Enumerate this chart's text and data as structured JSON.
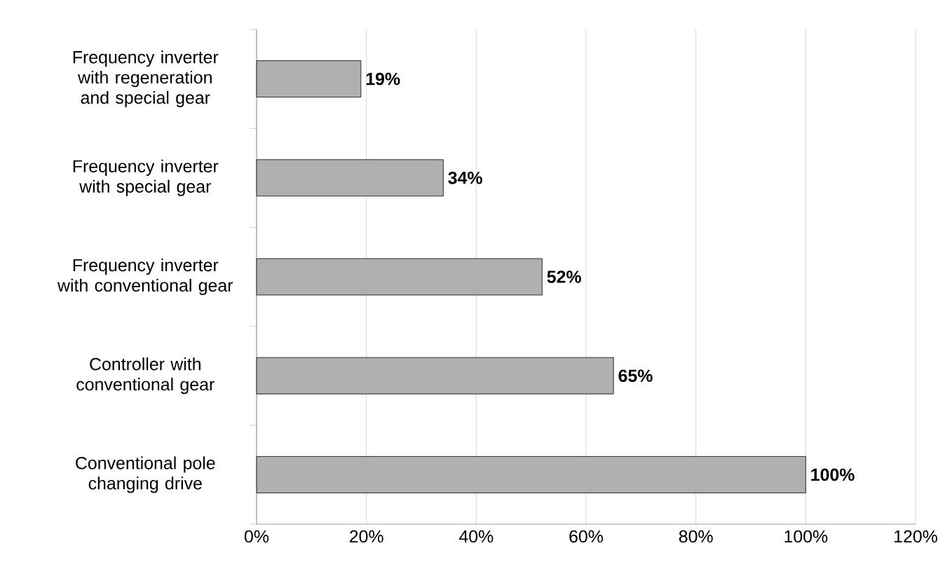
{
  "chart_data": {
    "type": "bar",
    "orientation": "horizontal",
    "categories": [
      "Frequency inverter with regeneration and special gear",
      "Frequency inverter with special gear",
      "Frequency inverter with conventional gear",
      "Controller with conventional gear",
      "Conventional pole changing drive"
    ],
    "values": [
      19,
      34,
      52,
      65,
      100
    ],
    "value_labels": [
      "19%",
      "34%",
      "52%",
      "65%",
      "100%"
    ],
    "color": "#b0b0b0",
    "xlim": [
      0,
      120
    ],
    "xticks": [
      {
        "value": 0,
        "label": "0%"
      },
      {
        "value": 20,
        "label": "20%"
      },
      {
        "value": 40,
        "label": "40%"
      },
      {
        "value": 60,
        "label": "60%"
      },
      {
        "value": 80,
        "label": "80%"
      },
      {
        "value": 100,
        "label": "100%"
      },
      {
        "value": 120,
        "label": "120%"
      }
    ],
    "grid": "x"
  }
}
